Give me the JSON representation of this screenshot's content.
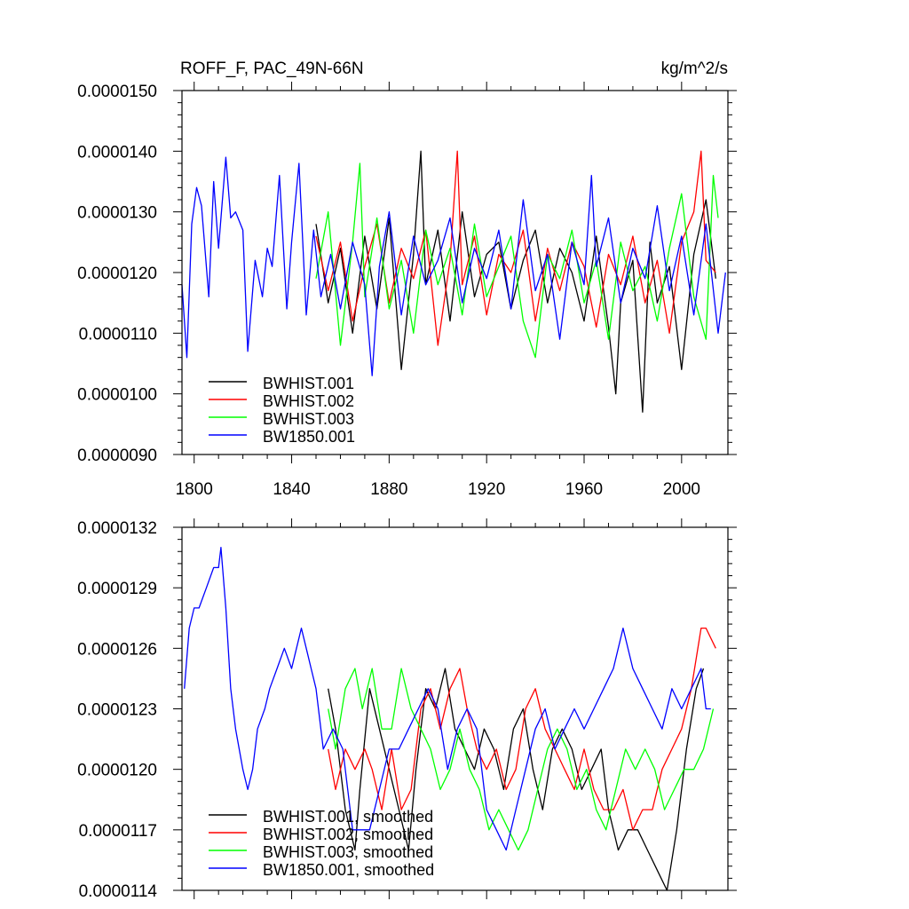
{
  "chart_data": [
    {
      "type": "line",
      "title": "ROFF_F, PAC_49N-66N",
      "units": "kg/m^2/s",
      "xlim": [
        1795,
        2019
      ],
      "ylim": [
        9e-06,
        1.5e-05
      ],
      "xticks": [
        1800,
        1840,
        1880,
        1920,
        1960,
        2000
      ],
      "xtick_labels": [
        "1800",
        "1840",
        "1880",
        "1920",
        "1960",
        "2000"
      ],
      "yticks": [
        9e-06,
        1e-05,
        1.1e-05,
        1.2e-05,
        1.3e-05,
        1.4e-05,
        1.5e-05
      ],
      "ytick_labels": [
        "0.0000090",
        "0.0000100",
        "0.0000110",
        "0.0000120",
        "0.0000130",
        "0.0000140",
        "0.0000150"
      ],
      "legend_position": "bottom-left",
      "series": [
        {
          "name": "BWHIST.001",
          "color": "#000000",
          "x": [
            1850,
            1855,
            1860,
            1865,
            1870,
            1875,
            1880,
            1885,
            1890,
            1893,
            1895,
            1900,
            1905,
            1910,
            1915,
            1920,
            1925,
            1930,
            1935,
            1940,
            1945,
            1950,
            1955,
            1960,
            1965,
            1970,
            1973,
            1975,
            1980,
            1984,
            1987,
            1990,
            1995,
            2000,
            2005,
            2010,
            2014
          ],
          "y": [
            1.28e-05,
            1.15e-05,
            1.24e-05,
            1.1e-05,
            1.26e-05,
            1.14e-05,
            1.29e-05,
            1.04e-05,
            1.23e-05,
            1.4e-05,
            1.18e-05,
            1.27e-05,
            1.12e-05,
            1.3e-05,
            1.16e-05,
            1.23e-05,
            1.25e-05,
            1.14e-05,
            1.22e-05,
            1.27e-05,
            1.15e-05,
            1.24e-05,
            1.2e-05,
            1.12e-05,
            1.26e-05,
            1.11e-05,
            1e-05,
            1.15e-05,
            1.22e-05,
            9.7e-06,
            1.25e-05,
            1.15e-05,
            1.21e-05,
            1.04e-05,
            1.23e-05,
            1.32e-05,
            1.19e-05
          ]
        },
        {
          "name": "BWHIST.002",
          "color": "#ff0000",
          "x": [
            1850,
            1855,
            1860,
            1865,
            1870,
            1875,
            1880,
            1885,
            1890,
            1895,
            1900,
            1905,
            1908,
            1910,
            1915,
            1920,
            1925,
            1930,
            1935,
            1940,
            1945,
            1950,
            1955,
            1960,
            1965,
            1970,
            1975,
            1980,
            1985,
            1990,
            1995,
            2000,
            2005,
            2008,
            2010,
            2014
          ],
          "y": [
            1.26e-05,
            1.17e-05,
            1.25e-05,
            1.12e-05,
            1.21e-05,
            1.28e-05,
            1.15e-05,
            1.24e-05,
            1.19e-05,
            1.27e-05,
            1.08e-05,
            1.22e-05,
            1.4e-05,
            1.18e-05,
            1.26e-05,
            1.13e-05,
            1.23e-05,
            1.2e-05,
            1.27e-05,
            1.12e-05,
            1.24e-05,
            1.17e-05,
            1.25e-05,
            1.21e-05,
            1.11e-05,
            1.23e-05,
            1.18e-05,
            1.26e-05,
            1.15e-05,
            1.22e-05,
            1.1e-05,
            1.25e-05,
            1.3e-05,
            1.4e-05,
            1.22e-05,
            1.2e-05
          ]
        },
        {
          "name": "BWHIST.003",
          "color": "#00ff00",
          "x": [
            1850,
            1855,
            1860,
            1865,
            1868,
            1870,
            1875,
            1880,
            1885,
            1890,
            1895,
            1900,
            1905,
            1910,
            1915,
            1920,
            1925,
            1930,
            1935,
            1940,
            1945,
            1950,
            1955,
            1960,
            1965,
            1970,
            1975,
            1980,
            1985,
            1990,
            1995,
            2000,
            2005,
            2010,
            2013,
            2015
          ],
          "y": [
            1.19e-05,
            1.3e-05,
            1.08e-05,
            1.25e-05,
            1.38e-05,
            1.16e-05,
            1.29e-05,
            1.14e-05,
            1.22e-05,
            1.1e-05,
            1.27e-05,
            1.18e-05,
            1.24e-05,
            1.13e-05,
            1.28e-05,
            1.16e-05,
            1.21e-05,
            1.26e-05,
            1.12e-05,
            1.06e-05,
            1.23e-05,
            1.19e-05,
            1.27e-05,
            1.15e-05,
            1.22e-05,
            1.09e-05,
            1.25e-05,
            1.17e-05,
            1.21e-05,
            1.12e-05,
            1.24e-05,
            1.33e-05,
            1.16e-05,
            1.09e-05,
            1.36e-05,
            1.29e-05
          ]
        },
        {
          "name": "BW1850.001",
          "color": "#0000ff",
          "x": [
            1795,
            1797,
            1799,
            1801,
            1803,
            1806,
            1808,
            1810,
            1813,
            1815,
            1817,
            1820,
            1822,
            1825,
            1828,
            1830,
            1832,
            1835,
            1838,
            1840,
            1843,
            1846,
            1849,
            1852,
            1856,
            1860,
            1865,
            1870,
            1873,
            1876,
            1880,
            1885,
            1890,
            1895,
            1900,
            1905,
            1910,
            1915,
            1920,
            1925,
            1930,
            1935,
            1940,
            1945,
            1950,
            1955,
            1960,
            1963,
            1965,
            1970,
            1975,
            1980,
            1985,
            1990,
            1995,
            2000,
            2005,
            2010,
            2015,
            2018
          ],
          "y": [
            1.18e-05,
            1.06e-05,
            1.28e-05,
            1.34e-05,
            1.31e-05,
            1.16e-05,
            1.35e-05,
            1.24e-05,
            1.39e-05,
            1.29e-05,
            1.3e-05,
            1.27e-05,
            1.07e-05,
            1.22e-05,
            1.16e-05,
            1.24e-05,
            1.21e-05,
            1.36e-05,
            1.14e-05,
            1.25e-05,
            1.38e-05,
            1.13e-05,
            1.27e-05,
            1.16e-05,
            1.23e-05,
            1.14e-05,
            1.25e-05,
            1.18e-05,
            1.03e-05,
            1.21e-05,
            1.3e-05,
            1.13e-05,
            1.26e-05,
            1.18e-05,
            1.22e-05,
            1.29e-05,
            1.15e-05,
            1.24e-05,
            1.19e-05,
            1.27e-05,
            1.14e-05,
            1.32e-05,
            1.17e-05,
            1.23e-05,
            1.09e-05,
            1.25e-05,
            1.18e-05,
            1.36e-05,
            1.21e-05,
            1.29e-05,
            1.15e-05,
            1.24e-05,
            1.19e-05,
            1.31e-05,
            1.17e-05,
            1.26e-05,
            1.13e-05,
            1.28e-05,
            1.1e-05,
            1.2e-05
          ]
        }
      ]
    },
    {
      "type": "line",
      "title": "",
      "xlim": [
        1795,
        2019
      ],
      "ylim": [
        1.14e-05,
        1.32e-05
      ],
      "xticks": [
        1800,
        1840,
        1880,
        1920,
        1960,
        2000
      ],
      "yticks": [
        1.14e-05,
        1.17e-05,
        1.2e-05,
        1.23e-05,
        1.26e-05,
        1.29e-05,
        1.32e-05
      ],
      "ytick_labels": [
        "0.0000114",
        "0.0000117",
        "0.0000120",
        "0.0000123",
        "0.0000126",
        "0.0000129",
        "0.0000132"
      ],
      "legend_position": "bottom-left",
      "series": [
        {
          "name": "BWHIST.001, smoothed",
          "color": "#000000",
          "x": [
            1855,
            1858,
            1862,
            1866,
            1868,
            1872,
            1876,
            1880,
            1884,
            1888,
            1891,
            1895,
            1899,
            1903,
            1907,
            1911,
            1915,
            1919,
            1923,
            1927,
            1931,
            1935,
            1939,
            1943,
            1947,
            1951,
            1955,
            1959,
            1963,
            1967,
            1970,
            1974,
            1978,
            1982,
            1986,
            1990,
            1994,
            1998,
            2002,
            2006,
            2009
          ],
          "y": [
            1.24e-05,
            1.22e-05,
            1.18e-05,
            1.16e-05,
            1.19e-05,
            1.24e-05,
            1.22e-05,
            1.2e-05,
            1.18e-05,
            1.16e-05,
            1.2e-05,
            1.24e-05,
            1.23e-05,
            1.25e-05,
            1.22e-05,
            1.21e-05,
            1.2e-05,
            1.22e-05,
            1.21e-05,
            1.19e-05,
            1.22e-05,
            1.23e-05,
            1.2e-05,
            1.18e-05,
            1.21e-05,
            1.22e-05,
            1.21e-05,
            1.19e-05,
            1.2e-05,
            1.21e-05,
            1.18e-05,
            1.16e-05,
            1.17e-05,
            1.17e-05,
            1.16e-05,
            1.15e-05,
            1.14e-05,
            1.17e-05,
            1.21e-05,
            1.24e-05,
            1.25e-05
          ]
        },
        {
          "name": "BWHIST.002, smoothed",
          "color": "#ff0000",
          "x": [
            1855,
            1858,
            1862,
            1866,
            1870,
            1873,
            1877,
            1881,
            1885,
            1889,
            1893,
            1897,
            1901,
            1905,
            1909,
            1912,
            1916,
            1920,
            1924,
            1928,
            1932,
            1936,
            1940,
            1944,
            1948,
            1952,
            1956,
            1960,
            1964,
            1968,
            1972,
            1976,
            1980,
            1984,
            1988,
            1992,
            1996,
            2000,
            2004,
            2008,
            2010,
            2014
          ],
          "y": [
            1.21e-05,
            1.19e-05,
            1.21e-05,
            1.2e-05,
            1.21e-05,
            1.2e-05,
            1.18e-05,
            1.21e-05,
            1.18e-05,
            1.19e-05,
            1.23e-05,
            1.24e-05,
            1.22e-05,
            1.24e-05,
            1.25e-05,
            1.23e-05,
            1.21e-05,
            1.2e-05,
            1.21e-05,
            1.19e-05,
            1.2e-05,
            1.23e-05,
            1.24e-05,
            1.22e-05,
            1.21e-05,
            1.2e-05,
            1.19e-05,
            1.21e-05,
            1.19e-05,
            1.18e-05,
            1.18e-05,
            1.19e-05,
            1.17e-05,
            1.18e-05,
            1.18e-05,
            1.2e-05,
            1.21e-05,
            1.22e-05,
            1.24e-05,
            1.27e-05,
            1.27e-05,
            1.26e-05
          ]
        },
        {
          "name": "BWHIST.003, smoothed",
          "color": "#00ff00",
          "x": [
            1855,
            1858,
            1862,
            1866,
            1869,
            1873,
            1877,
            1881,
            1885,
            1889,
            1893,
            1897,
            1901,
            1905,
            1909,
            1913,
            1917,
            1921,
            1925,
            1929,
            1933,
            1937,
            1941,
            1945,
            1949,
            1953,
            1957,
            1961,
            1965,
            1969,
            1973,
            1977,
            1981,
            1985,
            1989,
            1993,
            1997,
            2001,
            2005,
            2009,
            2013
          ],
          "y": [
            1.23e-05,
            1.21e-05,
            1.24e-05,
            1.25e-05,
            1.23e-05,
            1.25e-05,
            1.22e-05,
            1.22e-05,
            1.25e-05,
            1.23e-05,
            1.22e-05,
            1.21e-05,
            1.19e-05,
            1.2e-05,
            1.22e-05,
            1.2e-05,
            1.19e-05,
            1.17e-05,
            1.18e-05,
            1.17e-05,
            1.16e-05,
            1.17e-05,
            1.19e-05,
            1.21e-05,
            1.22e-05,
            1.21e-05,
            1.19e-05,
            1.2e-05,
            1.18e-05,
            1.17e-05,
            1.19e-05,
            1.21e-05,
            1.2e-05,
            1.21e-05,
            1.2e-05,
            1.18e-05,
            1.19e-05,
            1.2e-05,
            1.2e-05,
            1.21e-05,
            1.23e-05
          ]
        },
        {
          "name": "BW1850.001, smoothed",
          "color": "#0000ff",
          "x": [
            1796,
            1798,
            1800,
            1802,
            1805,
            1808,
            1810,
            1811,
            1813,
            1815,
            1817,
            1820,
            1822,
            1824,
            1826,
            1829,
            1831,
            1834,
            1837,
            1840,
            1842,
            1844,
            1846,
            1848,
            1850,
            1853,
            1857,
            1861,
            1865,
            1868,
            1872,
            1876,
            1880,
            1884,
            1888,
            1892,
            1896,
            1900,
            1904,
            1908,
            1912,
            1916,
            1920,
            1924,
            1928,
            1932,
            1936,
            1940,
            1944,
            1948,
            1952,
            1956,
            1960,
            1964,
            1968,
            1972,
            1976,
            1980,
            1984,
            1988,
            1992,
            1996,
            2000,
            2004,
            2008,
            2010,
            2012
          ],
          "y": [
            1.24e-05,
            1.27e-05,
            1.28e-05,
            1.28e-05,
            1.29e-05,
            1.3e-05,
            1.3e-05,
            1.31e-05,
            1.28e-05,
            1.24e-05,
            1.22e-05,
            1.2e-05,
            1.19e-05,
            1.2e-05,
            1.22e-05,
            1.23e-05,
            1.24e-05,
            1.25e-05,
            1.26e-05,
            1.25e-05,
            1.26e-05,
            1.27e-05,
            1.26e-05,
            1.25e-05,
            1.24e-05,
            1.21e-05,
            1.22e-05,
            1.21e-05,
            1.17e-05,
            1.17e-05,
            1.17e-05,
            1.19e-05,
            1.21e-05,
            1.21e-05,
            1.22e-05,
            1.23e-05,
            1.24e-05,
            1.23e-05,
            1.2e-05,
            1.22e-05,
            1.23e-05,
            1.22e-05,
            1.18e-05,
            1.17e-05,
            1.16e-05,
            1.18e-05,
            1.2e-05,
            1.22e-05,
            1.23e-05,
            1.21e-05,
            1.22e-05,
            1.23e-05,
            1.22e-05,
            1.23e-05,
            1.24e-05,
            1.25e-05,
            1.27e-05,
            1.25e-05,
            1.24e-05,
            1.23e-05,
            1.22e-05,
            1.24e-05,
            1.23e-05,
            1.24e-05,
            1.25e-05,
            1.23e-05,
            1.23e-05
          ]
        }
      ]
    }
  ]
}
